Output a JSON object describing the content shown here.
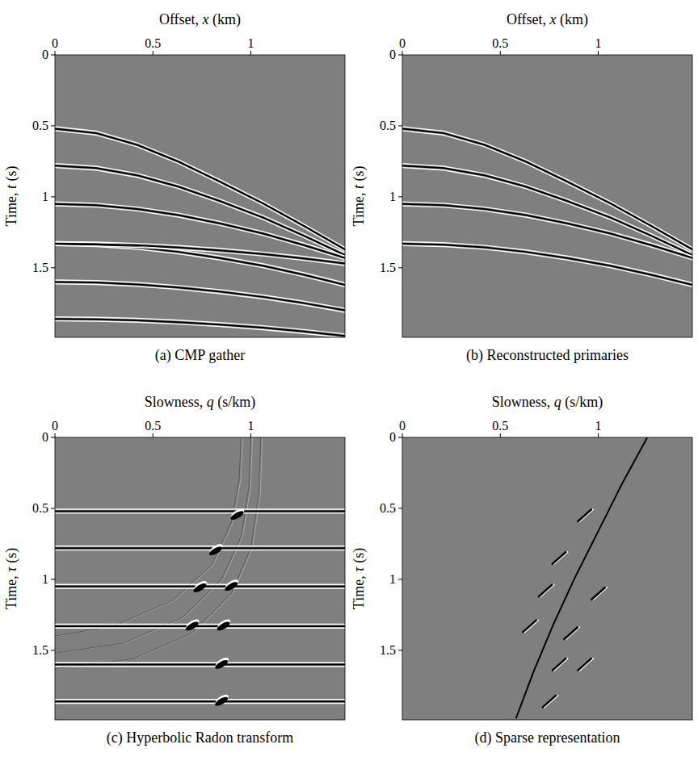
{
  "chart_data": [
    {
      "type": "seismic",
      "title": "(a) CMP gather",
      "x_label": "Offset, x (km)",
      "y_label": "Time, t (s)",
      "color": "#7f7f7f",
      "xlim": [
        0,
        1.48
      ],
      "ylim": [
        0,
        1.99
      ],
      "xticks": [
        0,
        0.5,
        1
      ],
      "yticks": [
        0,
        0.5,
        1,
        1.5
      ],
      "series": [
        {
          "type": "line",
          "line_style": "wavelet",
          "x": [
            0,
            0.21,
            0.42,
            0.63,
            0.84,
            1.06,
            1.27,
            1.48
          ],
          "values": [
            0.52,
            0.551,
            0.634,
            0.752,
            0.892,
            1.045,
            1.205,
            1.371
          ]
        },
        {
          "type": "line",
          "line_style": "wavelet",
          "x": [
            0,
            0.21,
            0.42,
            0.63,
            0.84,
            1.06,
            1.27,
            1.48
          ],
          "values": [
            0.78,
            0.798,
            0.849,
            0.928,
            1.029,
            1.145,
            1.274,
            1.41
          ]
        },
        {
          "type": "line",
          "line_style": "wavelet",
          "x": [
            0,
            0.21,
            0.42,
            0.63,
            0.84,
            1.06,
            1.27,
            1.48
          ],
          "values": [
            1.05,
            1.059,
            1.086,
            1.129,
            1.187,
            1.258,
            1.34,
            1.43
          ]
        },
        {
          "type": "line",
          "line_style": "wavelet",
          "x": [
            0,
            0.21,
            0.42,
            0.63,
            0.84,
            1.06,
            1.27,
            1.48
          ],
          "values": [
            1.33,
            1.337,
            1.356,
            1.388,
            1.431,
            1.485,
            1.549,
            1.62
          ]
        },
        {
          "type": "line",
          "line_style": "wavelet",
          "x": [
            0,
            0.21,
            0.42,
            0.63,
            0.84,
            1.06,
            1.27,
            1.48
          ],
          "values": [
            1.33,
            1.333,
            1.342,
            1.357,
            1.377,
            1.403,
            1.434,
            1.47
          ]
        },
        {
          "type": "line",
          "line_style": "wavelet",
          "x": [
            0,
            0.21,
            0.42,
            0.63,
            0.84,
            1.06,
            1.27,
            1.48
          ],
          "values": [
            1.6,
            1.604,
            1.617,
            1.639,
            1.668,
            1.705,
            1.749,
            1.8
          ]
        },
        {
          "type": "line",
          "line_style": "wavelet",
          "x": [
            0,
            0.21,
            0.42,
            0.63,
            0.84,
            1.06,
            1.27,
            1.48
          ],
          "values": [
            1.86,
            1.863,
            1.87,
            1.883,
            1.9,
            1.922,
            1.949,
            1.98
          ]
        }
      ]
    },
    {
      "type": "seismic",
      "title": "(b) Reconstructed primaries",
      "x_label": "Offset, x (km)",
      "y_label": "Time, t (s)",
      "color": "#7f7f7f",
      "xlim": [
        0,
        1.48
      ],
      "ylim": [
        0,
        1.99
      ],
      "xticks": [
        0,
        0.5,
        1
      ],
      "yticks": [
        0,
        0.5,
        1,
        1.5
      ],
      "series": [
        {
          "type": "line",
          "line_style": "wavelet",
          "x": [
            0,
            0.21,
            0.42,
            0.63,
            0.84,
            1.06,
            1.27,
            1.48
          ],
          "values": [
            0.52,
            0.551,
            0.634,
            0.752,
            0.892,
            1.045,
            1.205,
            1.371
          ]
        },
        {
          "type": "line",
          "line_style": "wavelet",
          "x": [
            0,
            0.21,
            0.42,
            0.63,
            0.84,
            1.06,
            1.27,
            1.48
          ],
          "values": [
            0.78,
            0.798,
            0.849,
            0.928,
            1.029,
            1.145,
            1.274,
            1.41
          ]
        },
        {
          "type": "line",
          "line_style": "wavelet",
          "x": [
            0,
            0.21,
            0.42,
            0.63,
            0.84,
            1.06,
            1.27,
            1.48
          ],
          "values": [
            1.05,
            1.059,
            1.086,
            1.129,
            1.187,
            1.258,
            1.34,
            1.43
          ]
        },
        {
          "type": "line",
          "line_style": "wavelet",
          "x": [
            0,
            0.21,
            0.42,
            0.63,
            0.84,
            1.06,
            1.27,
            1.48
          ],
          "values": [
            1.33,
            1.337,
            1.356,
            1.388,
            1.431,
            1.485,
            1.549,
            1.62
          ]
        }
      ]
    },
    {
      "type": "seismic",
      "title": "(c) Hyperbolic Radon transform",
      "x_label": "Slowness, q (s/km)",
      "y_label": "Time, τ (s)",
      "color": "#7f7f7f",
      "xlim": [
        0,
        1.48
      ],
      "ylim": [
        0,
        1.99
      ],
      "xticks": [
        0,
        0.5,
        1
      ],
      "yticks": [
        0,
        0.5,
        1,
        1.5
      ],
      "series": [
        {
          "type": "line",
          "line_style": "faint",
          "x": [
            0.95,
            0.94,
            0.9,
            0.8,
            0.6,
            0.3,
            0
          ],
          "values": [
            0,
            0.3,
            0.6,
            0.9,
            1.15,
            1.33,
            1.4
          ]
        },
        {
          "type": "line",
          "line_style": "faint",
          "x": [
            1.0,
            0.99,
            0.95,
            0.85,
            0.65,
            0.35,
            0
          ],
          "values": [
            0,
            0.35,
            0.7,
            1.0,
            1.27,
            1.45,
            1.52
          ]
        },
        {
          "type": "line",
          "line_style": "faint",
          "x": [
            1.05,
            1.04,
            1.0,
            0.9,
            0.7,
            0.4,
            0
          ],
          "values": [
            0,
            0.4,
            0.78,
            1.1,
            1.38,
            1.56,
            1.63
          ]
        },
        {
          "type": "line",
          "line_style": "wavelet",
          "x": [
            0,
            1.48
          ],
          "values": [
            0.52,
            0.52
          ]
        },
        {
          "type": "line",
          "line_style": "wavelet",
          "x": [
            0,
            1.48
          ],
          "values": [
            0.78,
            0.78
          ]
        },
        {
          "type": "line",
          "line_style": "wavelet",
          "x": [
            0,
            1.48
          ],
          "values": [
            1.05,
            1.05
          ]
        },
        {
          "type": "line",
          "line_style": "wavelet",
          "x": [
            0,
            1.48
          ],
          "values": [
            1.33,
            1.33
          ]
        },
        {
          "type": "line",
          "line_style": "wavelet",
          "x": [
            0,
            1.48
          ],
          "values": [
            1.6,
            1.6
          ]
        },
        {
          "type": "line",
          "line_style": "wavelet",
          "x": [
            0,
            1.48
          ],
          "values": [
            1.86,
            1.86
          ]
        },
        {
          "type": "scatter",
          "marker": "blob",
          "x": [
            0.93,
            0.82,
            0.74,
            0.9,
            0.7,
            0.86,
            0.85,
            0.85
          ],
          "values": [
            0.55,
            0.8,
            1.06,
            1.05,
            1.33,
            1.33,
            1.6,
            1.86
          ]
        }
      ]
    },
    {
      "type": "seismic",
      "title": "(d) Sparse representation",
      "x_label": "Slowness, q (s/km)",
      "y_label": "Time, τ (s)",
      "color": "#7f7f7f",
      "xlim": [
        0,
        1.48
      ],
      "ylim": [
        0,
        1.99
      ],
      "xticks": [
        0,
        0.5,
        1
      ],
      "yticks": [
        0,
        0.5,
        1,
        1.5
      ],
      "series": [
        {
          "type": "line",
          "line_style": "solid",
          "x": [
            1.25,
            1.12,
            1.0,
            0.88,
            0.77,
            0.67,
            0.58
          ],
          "values": [
            0,
            0.33,
            0.66,
            0.99,
            1.32,
            1.65,
            1.98
          ]
        },
        {
          "type": "scatter",
          "marker": "dash",
          "x": [
            0.93,
            0.8,
            1.0,
            0.73,
            0.86,
            0.65,
            0.8,
            0.93,
            0.75
          ],
          "values": [
            0.55,
            0.85,
            1.1,
            1.08,
            1.38,
            1.33,
            1.6,
            1.6,
            1.86
          ]
        }
      ]
    }
  ]
}
